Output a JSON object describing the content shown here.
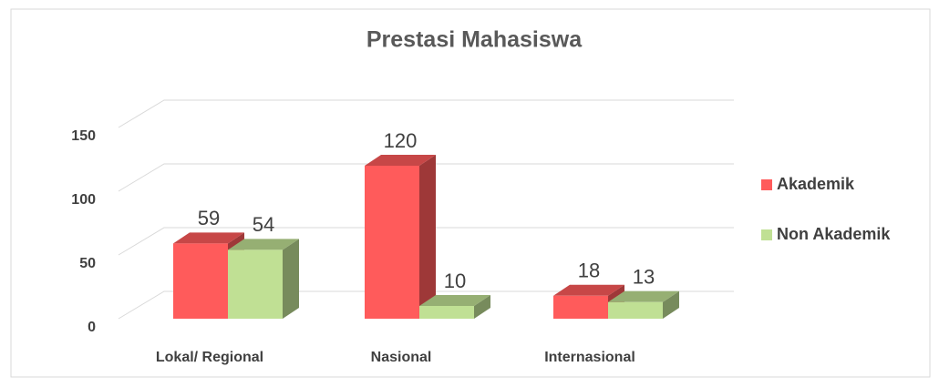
{
  "chart_data": {
    "type": "bar3d",
    "title": "Prestasi Mahasiswa",
    "categories": [
      "Lokal/ Regional",
      "Nasional",
      "Internasional"
    ],
    "series": [
      {
        "name": "Akademik",
        "color": "#ff5b5b",
        "values": [
          59,
          120,
          18
        ]
      },
      {
        "name": "Non Akademik",
        "color": "#c0e094",
        "values": [
          54,
          10,
          13
        ]
      }
    ],
    "ylim": [
      0,
      150
    ],
    "yticks": [
      0,
      50,
      100,
      150
    ],
    "grid": true,
    "legend": "right"
  }
}
